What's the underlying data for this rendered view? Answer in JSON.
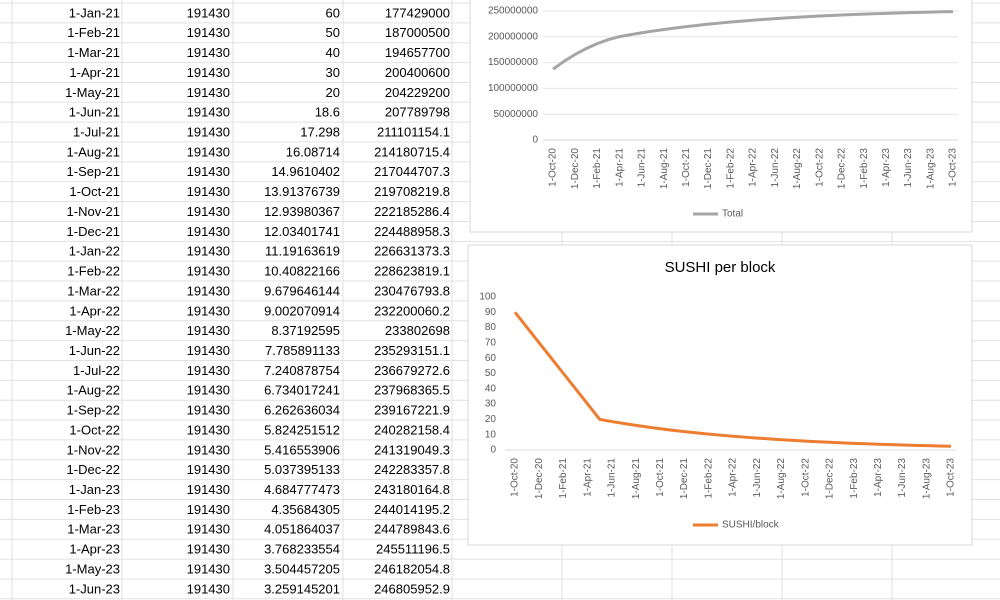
{
  "table": {
    "rows": [
      [
        "1-Jan-21",
        "191430",
        "60",
        "177429000"
      ],
      [
        "1-Feb-21",
        "191430",
        "50",
        "187000500"
      ],
      [
        "1-Mar-21",
        "191430",
        "40",
        "194657700"
      ],
      [
        "1-Apr-21",
        "191430",
        "30",
        "200400600"
      ],
      [
        "1-May-21",
        "191430",
        "20",
        "204229200"
      ],
      [
        "1-Jun-21",
        "191430",
        "18.6",
        "207789798"
      ],
      [
        "1-Jul-21",
        "191430",
        "17.298",
        "211101154.1"
      ],
      [
        "1-Aug-21",
        "191430",
        "16.08714",
        "214180715.4"
      ],
      [
        "1-Sep-21",
        "191430",
        "14.9610402",
        "217044707.3"
      ],
      [
        "1-Oct-21",
        "191430",
        "13.91376739",
        "219708219.8"
      ],
      [
        "1-Nov-21",
        "191430",
        "12.93980367",
        "222185286.4"
      ],
      [
        "1-Dec-21",
        "191430",
        "12.03401741",
        "224488958.3"
      ],
      [
        "1-Jan-22",
        "191430",
        "11.19163619",
        "226631373.3"
      ],
      [
        "1-Feb-22",
        "191430",
        "10.40822166",
        "228623819.1"
      ],
      [
        "1-Mar-22",
        "191430",
        "9.679646144",
        "230476793.8"
      ],
      [
        "1-Apr-22",
        "191430",
        "9.002070914",
        "232200060.2"
      ],
      [
        "1-May-22",
        "191430",
        "8.37192595",
        "233802698"
      ],
      [
        "1-Jun-22",
        "191430",
        "7.785891133",
        "235293151.1"
      ],
      [
        "1-Jul-22",
        "191430",
        "7.240878754",
        "236679272.6"
      ],
      [
        "1-Aug-22",
        "191430",
        "6.734017241",
        "237968365.5"
      ],
      [
        "1-Sep-22",
        "191430",
        "6.262636034",
        "239167221.9"
      ],
      [
        "1-Oct-22",
        "191430",
        "5.824251512",
        "240282158.4"
      ],
      [
        "1-Nov-22",
        "191430",
        "5.416553906",
        "241319049.3"
      ],
      [
        "1-Dec-22",
        "191430",
        "5.037395133",
        "242283357.8"
      ],
      [
        "1-Jan-23",
        "191430",
        "4.684777473",
        "243180164.8"
      ],
      [
        "1-Feb-23",
        "191430",
        "4.35684305",
        "244014195.2"
      ],
      [
        "1-Mar-23",
        "191430",
        "4.051864037",
        "244789843.6"
      ],
      [
        "1-Apr-23",
        "191430",
        "3.768233554",
        "245511196.5"
      ],
      [
        "1-May-23",
        "191430",
        "3.504457205",
        "246182054.8"
      ],
      [
        "1-Jun-23",
        "191430",
        "3.259145201",
        "246805952.9"
      ]
    ]
  },
  "chart_data": [
    {
      "type": "line",
      "categories": [
        "1-Oct-20",
        null,
        "1-Dec-20",
        null,
        "1-Feb-21",
        null,
        "1-Apr-21",
        null,
        "1-Jun-21",
        null,
        "1-Aug-21",
        null,
        "1-Oct-21",
        null,
        "1-Dec-21",
        null,
        "1-Feb-22",
        null,
        "1-Apr-22",
        null,
        "1-Jun-22",
        null,
        "1-Aug-22",
        null,
        "1-Oct-22",
        null,
        "1-Dec-22",
        null,
        "1-Feb-23",
        null,
        "1-Apr-23",
        null,
        "1-Jun-23",
        null,
        "1-Aug-23",
        null,
        "1-Oct-23"
      ],
      "series": [
        {
          "name": "Total",
          "color": "#a5a5a5",
          "values": [
            137228700,
            152543100,
            165943200,
            177429000,
            187000500,
            194657700,
            200400600,
            204229200,
            207789798,
            211101154.1,
            214180715.4,
            217044707.3,
            219708219.8,
            222185286.4,
            224488958.3,
            226631373.3,
            228623819.1,
            230476793.8,
            232200060.2,
            233802698,
            235293151.1,
            236679272.6,
            237968365.5,
            239167221.9,
            240282158.4,
            241319049.3,
            242283357.8,
            243180164.8,
            244014195.2,
            244789843.6,
            245511196.5,
            246182054.8,
            246805952.9,
            247386180,
            247925789,
            248427626,
            248894334
          ]
        }
      ],
      "ylim": [
        0,
        250000000
      ],
      "yticks": [
        0,
        50000000,
        100000000,
        150000000,
        200000000,
        250000000
      ],
      "grid": true,
      "legend": "bottom"
    },
    {
      "type": "line",
      "title": "SUSHI per block",
      "categories": [
        "1-Oct-20",
        null,
        "1-Dec-20",
        null,
        "1-Feb-21",
        null,
        "1-Apr-21",
        null,
        "1-Jun-21",
        null,
        "1-Aug-21",
        null,
        "1-Oct-21",
        null,
        "1-Dec-21",
        null,
        "1-Feb-22",
        null,
        "1-Apr-22",
        null,
        "1-Jun-22",
        null,
        "1-Aug-22",
        null,
        "1-Oct-22",
        null,
        "1-Dec-22",
        null,
        "1-Feb-23",
        null,
        "1-Apr-23",
        null,
        "1-Jun-23",
        null,
        "1-Aug-23",
        null,
        "1-Oct-23"
      ],
      "series": [
        {
          "name": "SUSHI/block",
          "color": "#ed7d31",
          "values": [
            90,
            80,
            70,
            60,
            50,
            40,
            30,
            20,
            18.6,
            17.298,
            16.08714,
            14.9610402,
            13.91376739,
            12.93980367,
            12.03401741,
            11.19163619,
            10.40822166,
            9.679646144,
            9.002070914,
            8.37192595,
            7.785891133,
            7.240878754,
            6.734017241,
            6.262636034,
            5.824251512,
            5.416553906,
            5.037395133,
            4.684777473,
            4.35684305,
            4.051864037,
            3.768233554,
            3.504457205,
            3.259145201,
            3.03,
            2.82,
            2.62,
            2.44
          ]
        }
      ],
      "ylim": [
        0,
        100
      ],
      "yticks": [
        0,
        10,
        20,
        30,
        40,
        50,
        60,
        70,
        80,
        90,
        100
      ],
      "grid": false,
      "legend": "bottom"
    }
  ]
}
